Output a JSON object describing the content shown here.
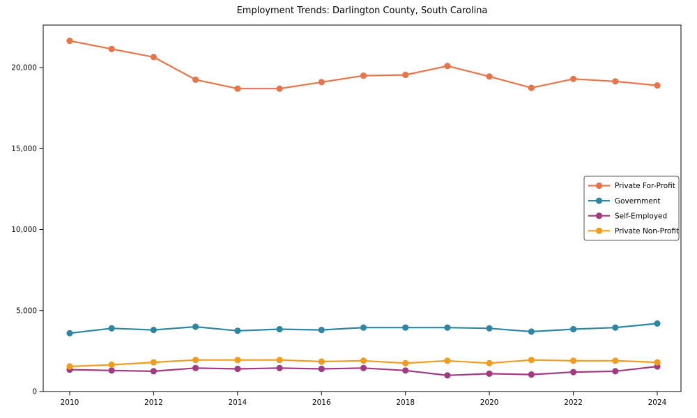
{
  "figure": {
    "background": "#ffffff",
    "frame_color": "#000000"
  },
  "chart_data": {
    "type": "line",
    "title": "Employment Trends: Darlington County, South Carolina",
    "xlabel": "",
    "ylabel": "",
    "grid": false,
    "legend_position": "center right",
    "legend_border_color": "#555555",
    "x": [
      2010,
      2011,
      2012,
      2013,
      2014,
      2015,
      2016,
      2017,
      2018,
      2019,
      2020,
      2021,
      2022,
      2023,
      2024
    ],
    "xticks": [
      2010,
      2012,
      2014,
      2016,
      2018,
      2020,
      2022,
      2024
    ],
    "xtick_labels": [
      "2010",
      "2012",
      "2014",
      "2016",
      "2018",
      "2020",
      "2022",
      "2024"
    ],
    "yticks": [
      0,
      5000,
      10000,
      15000,
      20000
    ],
    "ytick_labels": [
      "0",
      "5,000",
      "10,000",
      "15,000",
      "20,000"
    ],
    "ylim": [
      0,
      22600
    ],
    "xlim": [
      2009.35,
      2024.6
    ],
    "series": [
      {
        "name": "Private For-Profit",
        "color": "#E8744B",
        "values": [
          21650,
          21150,
          20650,
          19250,
          18700,
          18700,
          19100,
          19500,
          19550,
          20100,
          19450,
          18750,
          19300,
          19150,
          18900
        ]
      },
      {
        "name": "Government",
        "color": "#2F86A1",
        "values": [
          3600,
          3900,
          3800,
          4000,
          3750,
          3850,
          3800,
          3950,
          3950,
          3950,
          3900,
          3700,
          3850,
          3950,
          4200
        ]
      },
      {
        "name": "Self-Employed",
        "color": "#A13B80",
        "values": [
          1350,
          1300,
          1250,
          1450,
          1400,
          1450,
          1400,
          1450,
          1300,
          1000,
          1100,
          1050,
          1200,
          1250,
          1550
        ]
      },
      {
        "name": "Private Non-Profit",
        "color": "#F09C1E",
        "values": [
          1550,
          1650,
          1800,
          1950,
          1950,
          1950,
          1850,
          1900,
          1750,
          1900,
          1750,
          1950,
          1900,
          1900,
          1800
        ]
      }
    ]
  }
}
